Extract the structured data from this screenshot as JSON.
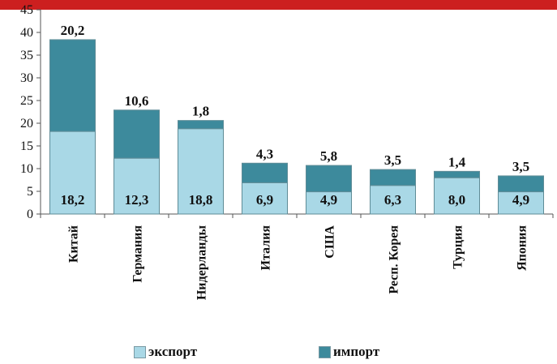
{
  "chart_data": {
    "type": "bar",
    "stacked": true,
    "categories": [
      "Китай",
      "Германия",
      "Нидерланды",
      "Италия",
      "США",
      "Респ. Корея",
      "Турция",
      "Япония"
    ],
    "series": [
      {
        "name": "экспорт",
        "color": "#a9d8e6",
        "values": [
          18.2,
          12.3,
          18.8,
          6.9,
          4.9,
          6.3,
          8.0,
          4.9
        ],
        "labels": [
          "18,2",
          "12,3",
          "18,8",
          "6,9",
          "4,9",
          "6,3",
          "8,0",
          "4,9"
        ]
      },
      {
        "name": "импорт",
        "color": "#3d8a9c",
        "values": [
          20.2,
          10.6,
          1.8,
          4.3,
          5.8,
          3.5,
          1.4,
          3.5
        ],
        "labels": [
          "20,2",
          "10,6",
          "1,8",
          "4,3",
          "5,8",
          "3,5",
          "1,4",
          "3,5"
        ]
      }
    ],
    "ylim": [
      0,
      45
    ],
    "yticks": [
      "0",
      "5",
      "10",
      "15",
      "20",
      "25",
      "30",
      "35",
      "40",
      "45"
    ],
    "grid": false,
    "legend_position": "bottom"
  },
  "colors": {
    "accent_band": "#cc1f1f",
    "axis": "#555555"
  }
}
